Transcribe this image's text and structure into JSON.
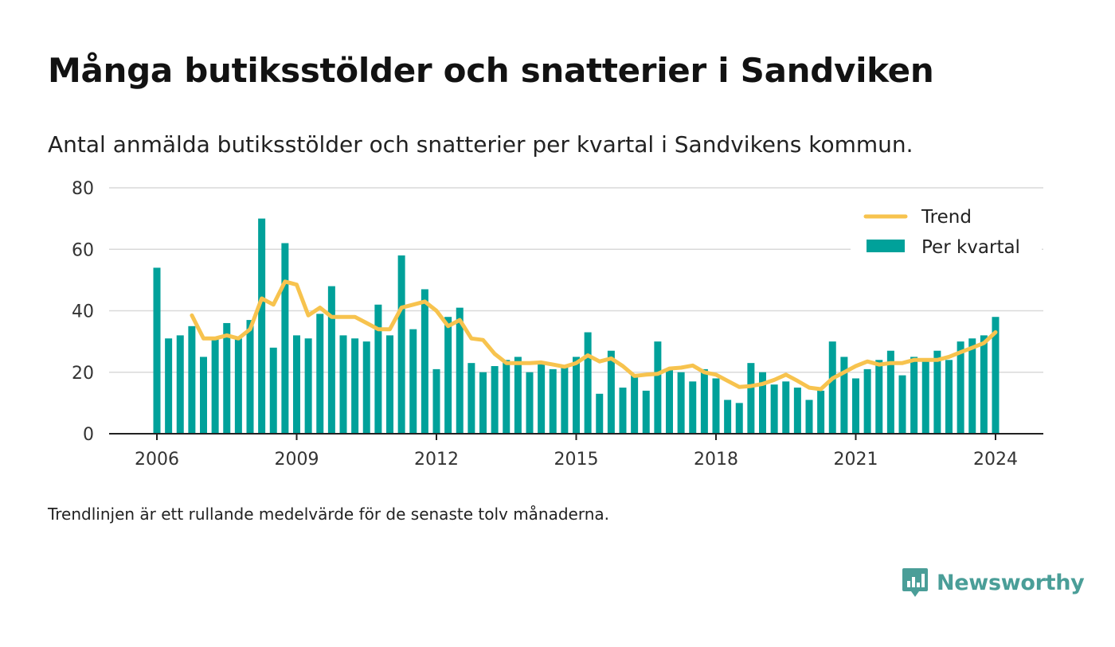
{
  "header": {
    "title": "Många butiksstölder och snatterier i Sandviken",
    "subtitle": "Antal anmälda butiksstölder och snatterier per kvartal i Sandvikens kommun."
  },
  "footnote": "Trendlinjen är ett rullande medelvärde för de senaste tolv månaderna.",
  "brand": {
    "name": "Newsworthy"
  },
  "colors": {
    "bar": "#00a19a",
    "trend": "#f7c34e",
    "grid": "#d9d9d9",
    "axis": "#222222",
    "brand": "#4a9e98"
  },
  "chart_data": {
    "type": "bar",
    "ylim": [
      0,
      80
    ],
    "yticks": [
      0,
      20,
      40,
      60,
      80
    ],
    "xticks": [
      "2006",
      "2009",
      "2012",
      "2015",
      "2018",
      "2021",
      "2024"
    ],
    "grid": true,
    "legend_position": "top-right",
    "legend": [
      "Trend",
      "Per kvartal"
    ],
    "series": [
      {
        "name": "Per kvartal",
        "type": "bar",
        "x": [
          "2006 Q1",
          "2006 Q2",
          "2006 Q3",
          "2006 Q4",
          "2007 Q1",
          "2007 Q2",
          "2007 Q3",
          "2007 Q4",
          "2008 Q1",
          "2008 Q2",
          "2008 Q3",
          "2008 Q4",
          "2009 Q1",
          "2009 Q2",
          "2009 Q3",
          "2009 Q4",
          "2010 Q1",
          "2010 Q2",
          "2010 Q3",
          "2010 Q4",
          "2011 Q1",
          "2011 Q2",
          "2011 Q3",
          "2011 Q4",
          "2012 Q1",
          "2012 Q2",
          "2012 Q3",
          "2012 Q4",
          "2013 Q1",
          "2013 Q2",
          "2013 Q3",
          "2013 Q4",
          "2014 Q1",
          "2014 Q2",
          "2014 Q3",
          "2014 Q4",
          "2015 Q1",
          "2015 Q2",
          "2015 Q3",
          "2015 Q4",
          "2016 Q1",
          "2016 Q2",
          "2016 Q3",
          "2016 Q4",
          "2017 Q1",
          "2017 Q2",
          "2017 Q3",
          "2017 Q4",
          "2018 Q1",
          "2018 Q2",
          "2018 Q3",
          "2018 Q4",
          "2019 Q1",
          "2019 Q2",
          "2019 Q3",
          "2019 Q4",
          "2020 Q1",
          "2020 Q2",
          "2020 Q3",
          "2020 Q4",
          "2021 Q1",
          "2021 Q2",
          "2021 Q3",
          "2021 Q4",
          "2022 Q1",
          "2022 Q2",
          "2022 Q3",
          "2022 Q4",
          "2023 Q1",
          "2023 Q2",
          "2023 Q3",
          "2023 Q4",
          "2024 Q1"
        ],
        "values": [
          54,
          31,
          32,
          35,
          25,
          31,
          36,
          31,
          37,
          70,
          28,
          62,
          32,
          31,
          39,
          48,
          32,
          31,
          30,
          42,
          32,
          58,
          34,
          47,
          21,
          38,
          41,
          23,
          20,
          22,
          24,
          25,
          20,
          23,
          21,
          22,
          25,
          33,
          13,
          27,
          15,
          19,
          14,
          30,
          21,
          20,
          17,
          21,
          18,
          11,
          10,
          23,
          20,
          16,
          17,
          15,
          11,
          14,
          30,
          25,
          18,
          21,
          24,
          27,
          19,
          25,
          24,
          27,
          24,
          30,
          31,
          32,
          38
        ]
      },
      {
        "name": "Trend",
        "type": "line",
        "x": [
          "2006 Q4",
          "2007 Q1",
          "2007 Q2",
          "2007 Q3",
          "2007 Q4",
          "2008 Q1",
          "2008 Q2",
          "2008 Q3",
          "2008 Q4",
          "2009 Q1",
          "2009 Q2",
          "2009 Q3",
          "2009 Q4",
          "2010 Q1",
          "2010 Q2",
          "2010 Q3",
          "2010 Q4",
          "2011 Q1",
          "2011 Q2",
          "2011 Q3",
          "2011 Q4",
          "2012 Q1",
          "2012 Q2",
          "2012 Q3",
          "2012 Q4",
          "2013 Q1",
          "2013 Q2",
          "2013 Q3",
          "2013 Q4",
          "2014 Q1",
          "2014 Q2",
          "2014 Q3",
          "2014 Q4",
          "2015 Q1",
          "2015 Q2",
          "2015 Q3",
          "2015 Q4",
          "2016 Q1",
          "2016 Q2",
          "2016 Q3",
          "2016 Q4",
          "2017 Q1",
          "2017 Q2",
          "2017 Q3",
          "2017 Q4",
          "2018 Q1",
          "2018 Q2",
          "2018 Q3",
          "2018 Q4",
          "2019 Q1",
          "2019 Q2",
          "2019 Q3",
          "2019 Q4",
          "2020 Q1",
          "2020 Q2",
          "2020 Q3",
          "2020 Q4",
          "2021 Q1",
          "2021 Q2",
          "2021 Q3",
          "2021 Q4",
          "2022 Q1",
          "2022 Q2",
          "2022 Q3",
          "2022 Q4",
          "2023 Q1",
          "2023 Q2",
          "2023 Q3",
          "2023 Q4",
          "2024 Q1"
        ],
        "values": [
          38.5,
          31,
          31,
          32,
          31,
          34,
          44,
          42,
          49.5,
          48.5,
          38.5,
          41,
          38,
          38,
          38,
          36,
          34,
          34,
          41,
          42,
          43,
          40,
          35,
          37,
          31,
          30.5,
          26,
          23,
          23,
          23,
          23.2,
          22.5,
          21.8,
          23,
          25.5,
          23.5,
          24.5,
          22,
          18.8,
          19.2,
          19.5,
          21.2,
          21.5,
          22.2,
          20,
          19.2,
          17.2,
          15.2,
          15.5,
          16.2,
          17.5,
          19.2,
          17.2,
          15,
          14.5,
          18,
          20,
          22,
          23.5,
          22.5,
          23,
          23,
          24,
          24,
          24,
          25,
          26.5,
          28,
          29.5,
          33
        ]
      }
    ]
  }
}
